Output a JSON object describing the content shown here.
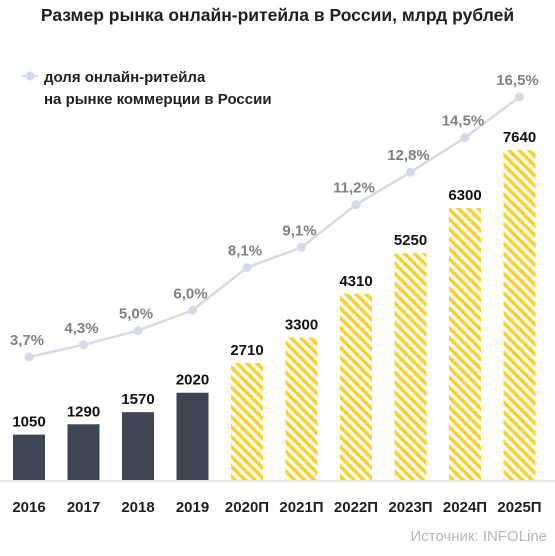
{
  "title": "Размер рынка онлайн-ритейла в России, млрд рублей",
  "source": "Источник: INFOLine",
  "colors": {
    "actual": "#3d4452",
    "forecast": "#fdd02b",
    "share_line": "#d6dae5",
    "share_label": "#808080",
    "value_label": "#111111"
  },
  "chart_data": {
    "type": "bar",
    "categories": [
      "2016",
      "2017",
      "2018",
      "2019",
      "2020П",
      "2021П",
      "2022П",
      "2023П",
      "2024П",
      "2025П"
    ],
    "values": [
      1050,
      1290,
      1570,
      2020,
      2710,
      3300,
      4310,
      5250,
      6300,
      7640
    ],
    "value_labels": [
      "1050",
      "1290",
      "1570",
      "2020",
      "2710",
      "3300",
      "4310",
      "5250",
      "6300",
      "7640"
    ],
    "forecast_from_index": 4,
    "legend": {
      "line1": "доля онлайн-ритейла",
      "line2": "на рынке коммерции в России",
      "placement": "top-left"
    },
    "share_series": {
      "values": [
        3.7,
        4.3,
        5.0,
        6.0,
        8.1,
        9.1,
        11.2,
        12.8,
        14.5,
        16.5
      ],
      "labels": [
        "3,7%",
        "4,3%",
        "5,0%",
        "6,0%",
        "8,1%",
        "9,1%",
        "11,2%",
        "12,8%",
        "14,5%",
        "16,5%"
      ]
    }
  }
}
